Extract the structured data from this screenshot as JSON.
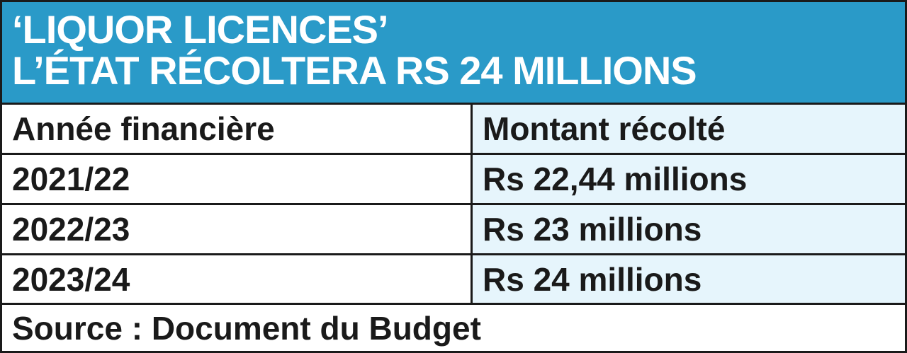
{
  "colors": {
    "header_bg": "#2a9ac8",
    "header_text": "#ffffff",
    "value_column_bg": "#e6f5fc",
    "border": "#1a1a1a"
  },
  "header": {
    "line1": "‘LIQUOR LICENCES’",
    "line2": "L’ÉTAT RÉCOLTERA RS 24 MILLIONS"
  },
  "chart_data": {
    "type": "table",
    "title": "‘LIQUOR LICENCES’ L’ÉTAT RÉCOLTERA RS 24 MILLIONS",
    "columns": [
      "Année financière",
      "Montant récolté"
    ],
    "rows": [
      [
        "2021/22",
        "Rs 22,44 millions"
      ],
      [
        "2022/23",
        "Rs 23 millions"
      ],
      [
        "2023/24",
        "Rs 24 millions"
      ]
    ],
    "source": "Source : Document du Budget"
  }
}
